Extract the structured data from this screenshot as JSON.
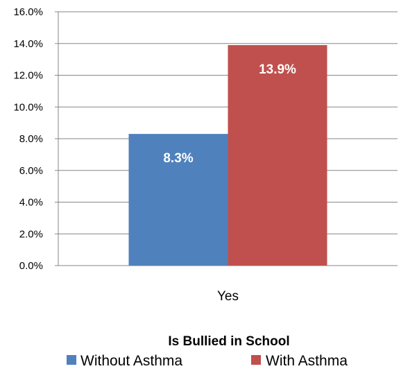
{
  "chart_data": {
    "type": "bar",
    "categories": [
      "Yes"
    ],
    "series": [
      {
        "name": "Without Asthma",
        "values": [
          8.3
        ],
        "color": "#4F81BD",
        "data_labels": [
          "8.3%"
        ]
      },
      {
        "name": "With Asthma",
        "values": [
          13.9
        ],
        "color": "#C0504D",
        "data_labels": [
          "13.9%"
        ]
      }
    ],
    "legend_title": "Is Bullied in School",
    "legend_position": "bottom",
    "ylim": [
      0,
      16
    ],
    "yticks": [
      0,
      2,
      4,
      6,
      8,
      10,
      12,
      14,
      16
    ],
    "ytick_labels": [
      "0.0%",
      "2.0%",
      "4.0%",
      "6.0%",
      "8.0%",
      "10.0%",
      "12.0%",
      "14.0%",
      "16.0%"
    ],
    "grid": true,
    "grid_color": "#868686",
    "axis_color": "#868686"
  }
}
